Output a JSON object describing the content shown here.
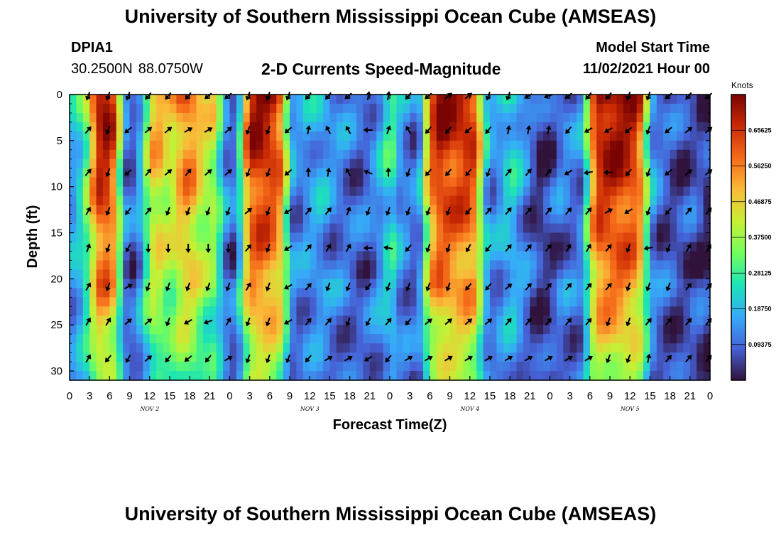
{
  "header": {
    "title": "University of Southern Mississippi Ocean Cube (AMSEAS)",
    "station": "DPIA1",
    "lat": "30.2500N",
    "lon": "88.0750W",
    "product": "2-D Currents Speed-Magnitude",
    "model_start_label": "Model Start Time",
    "model_start_value": "11/02/2021 Hour 00"
  },
  "footer": {
    "title": "University of Southern Mississippi Ocean Cube (AMSEAS)"
  },
  "colors": {
    "colormap": [
      "#30123b",
      "#4662d7",
      "#36aaf9",
      "#1ae4b6",
      "#72fe5e",
      "#c7ef34",
      "#faba39",
      "#f66b19",
      "#ca2a04",
      "#7a0403"
    ]
  },
  "chart_data": {
    "type": "heatmap",
    "title": "2-D Currents Speed-Magnitude",
    "xlabel": "Forecast Time(Z)",
    "ylabel": "Depth (ft)",
    "x_tick_labels": [
      "0",
      "3",
      "6",
      "9",
      "12",
      "15",
      "18",
      "21",
      "0",
      "3",
      "6",
      "9",
      "12",
      "15",
      "18",
      "21",
      "0",
      "3",
      "6",
      "9",
      "12",
      "15",
      "18",
      "21",
      "0",
      "3",
      "6",
      "9",
      "12",
      "15",
      "18",
      "21",
      "0"
    ],
    "day_labels": [
      {
        "hour": 12,
        "label": "NOV 2"
      },
      {
        "hour": 36,
        "label": "NOV 3"
      },
      {
        "hour": 60,
        "label": "NOV 4"
      },
      {
        "hour": 84,
        "label": "NOV 5"
      }
    ],
    "x_range_hours": [
      0,
      96
    ],
    "y_ticks": [
      0,
      5,
      10,
      15,
      20,
      25,
      30
    ],
    "ylim": [
      0,
      31
    ],
    "colorbar": {
      "title": "Knots",
      "range": [
        0.0,
        0.75
      ],
      "ticks": [
        "0.65625",
        "0.56250",
        "0.46875",
        "0.37500",
        "0.28125",
        "0.18750",
        "0.09375"
      ]
    },
    "arrow_depths": [
      0,
      3.7,
      8.3,
      12.5,
      16.5,
      20.7,
      24.5,
      28.5
    ],
    "arrow_hours": [
      3,
      6,
      9,
      12,
      15,
      18,
      21,
      24,
      27,
      30,
      33,
      36,
      39,
      42,
      45,
      48,
      51,
      54,
      57,
      60,
      63,
      66,
      69,
      72,
      75,
      78,
      81,
      84,
      87,
      90,
      93,
      96
    ],
    "speed_profile_hours": [
      0,
      2,
      3,
      4,
      5,
      6,
      7,
      8,
      9,
      10,
      11,
      12,
      13,
      14,
      15,
      16,
      17,
      18,
      19,
      20,
      21,
      22,
      23,
      24,
      25,
      26,
      27,
      28,
      29,
      30,
      31,
      32,
      33,
      34,
      35,
      36,
      37,
      38,
      39,
      40,
      41,
      42,
      43,
      44,
      45,
      46,
      47,
      48,
      49,
      50,
      51,
      52,
      53,
      54,
      55,
      56,
      57,
      58,
      59,
      60,
      61,
      62,
      63,
      64,
      65,
      66,
      67,
      68,
      69,
      70,
      71,
      72,
      73,
      74,
      75,
      76,
      77,
      78,
      79,
      80,
      81,
      82,
      83,
      84,
      85,
      86,
      87,
      88,
      89,
      90,
      91,
      92,
      93,
      94,
      95,
      96
    ],
    "surface_speed_knots": [
      0.16,
      0.28,
      0.45,
      0.7,
      0.75,
      0.72,
      0.6,
      0.18,
      0.08,
      0.12,
      0.25,
      0.48,
      0.55,
      0.5,
      0.45,
      0.52,
      0.6,
      0.6,
      0.55,
      0.45,
      0.45,
      0.42,
      0.18,
      0.12,
      0.1,
      0.45,
      0.7,
      0.74,
      0.74,
      0.72,
      0.68,
      0.58,
      0.2,
      0.12,
      0.15,
      0.18,
      0.18,
      0.2,
      0.15,
      0.14,
      0.13,
      0.12,
      0.1,
      0.1,
      0.12,
      0.15,
      0.22,
      0.3,
      0.25,
      0.1,
      0.18,
      0.05,
      0.3,
      0.6,
      0.72,
      0.74,
      0.72,
      0.7,
      0.72,
      0.7,
      0.65,
      0.3,
      0.15,
      0.15,
      0.2,
      0.25,
      0.22,
      0.15,
      0.12,
      0.04,
      0.05,
      0.06,
      0.1,
      0.14,
      0.12,
      0.12,
      0.15,
      0.5,
      0.72,
      0.75,
      0.75,
      0.76,
      0.74,
      0.72,
      0.7,
      0.55,
      0.2,
      0.12,
      0.1,
      0.08,
      0.07,
      0.06,
      0.08,
      0.08,
      0.05,
      0.04
    ],
    "arrows_deg": [
      [
        200,
        200,
        200,
        220,
        220,
        220,
        230,
        230,
        200,
        200,
        200,
        220,
        220,
        230,
        10,
        10,
        220,
        230,
        50,
        50,
        200,
        200,
        240,
        250,
        230,
        220,
        220,
        200,
        200,
        230,
        220,
        230
      ],
      [
        40,
        200,
        230,
        50,
        50,
        60,
        60,
        50,
        200,
        200,
        230,
        10,
        330,
        330,
        270,
        20,
        330,
        220,
        220,
        230,
        220,
        10,
        10,
        10,
        220,
        240,
        240,
        230,
        200,
        230,
        50,
        50
      ],
      [
        40,
        200,
        230,
        40,
        50,
        40,
        50,
        50,
        200,
        200,
        230,
        0,
        10,
        330,
        290,
        0,
        200,
        220,
        220,
        220,
        200,
        40,
        40,
        40,
        240,
        260,
        270,
        220,
        200,
        230,
        50,
        50
      ],
      [
        30,
        200,
        220,
        40,
        200,
        200,
        200,
        200,
        50,
        200,
        240,
        40,
        40,
        20,
        200,
        200,
        200,
        200,
        200,
        220,
        40,
        40,
        40,
        40,
        40,
        40,
        60,
        240,
        200,
        220,
        40,
        40
      ],
      [
        20,
        200,
        210,
        180,
        180,
        180,
        180,
        180,
        40,
        200,
        240,
        40,
        30,
        30,
        270,
        280,
        220,
        200,
        200,
        210,
        220,
        40,
        40,
        40,
        30,
        30,
        40,
        200,
        260,
        200,
        30,
        30
      ],
      [
        30,
        200,
        60,
        200,
        200,
        200,
        200,
        200,
        30,
        200,
        240,
        40,
        200,
        200,
        220,
        200,
        200,
        200,
        200,
        220,
        220,
        50,
        40,
        40,
        40,
        40,
        40,
        200,
        200,
        200,
        40,
        40
      ],
      [
        30,
        30,
        50,
        50,
        200,
        240,
        250,
        30,
        200,
        200,
        240,
        40,
        40,
        200,
        210,
        40,
        220,
        50,
        50,
        50,
        50,
        40,
        40,
        40,
        40,
        40,
        200,
        200,
        40,
        40,
        40,
        40
      ],
      [
        30,
        220,
        210,
        50,
        220,
        230,
        220,
        60,
        200,
        200,
        200,
        220,
        60,
        60,
        240,
        220,
        60,
        60,
        60,
        60,
        60,
        60,
        60,
        60,
        60,
        60,
        200,
        200,
        10,
        40,
        40,
        40
      ]
    ]
  }
}
